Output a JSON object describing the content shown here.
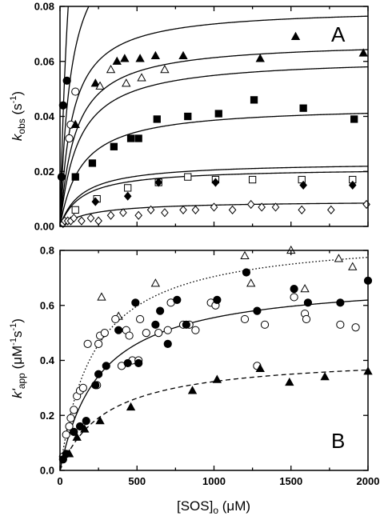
{
  "figure": {
    "xlabel_main": "[SOS]",
    "xlabel_sub": "o",
    "xlabel_unit": " (μM)"
  },
  "chart_data": [
    {
      "type": "scatter",
      "panel_label": "A",
      "ylabel_main": "k",
      "ylabel_sub": "obs",
      "ylabel_unit": " (s",
      "ylabel_sup": "-1",
      "ylabel_close": ")",
      "xlim": [
        0,
        2000
      ],
      "ylim": [
        0,
        0.08
      ],
      "xticks": [],
      "xtick_labels": [],
      "yticks": [
        0,
        0.02,
        0.04,
        0.06,
        0.08
      ],
      "ytick_labels": [
        "0.00",
        "0.02",
        "0.04",
        "0.06",
        "0.08"
      ],
      "grid": false,
      "series": [
        {
          "marker": "filled-circle",
          "points": [
            [
              10,
              0.018
            ],
            [
              20,
              0.044
            ],
            [
              45,
              0.053
            ]
          ]
        },
        {
          "marker": "open-circle",
          "points": [
            [
              60,
              0.032
            ],
            [
              70,
              0.037
            ],
            [
              100,
              0.049
            ]
          ]
        },
        {
          "marker": "filled-triangle",
          "points": [
            [
              100,
              0.037
            ],
            [
              230,
              0.052
            ],
            [
              370,
              0.06
            ],
            [
              420,
              0.061
            ],
            [
              520,
              0.061
            ],
            [
              620,
              0.062
            ],
            [
              800,
              0.062
            ],
            [
              1300,
              0.061
            ],
            [
              1530,
              0.069
            ],
            [
              1970,
              0.063
            ]
          ]
        },
        {
          "marker": "open-triangle",
          "points": [
            [
              260,
              0.051
            ],
            [
              330,
              0.057
            ],
            [
              430,
              0.052
            ],
            [
              530,
              0.054
            ],
            [
              680,
              0.057
            ]
          ]
        },
        {
          "marker": "filled-square",
          "points": [
            [
              100,
              0.018
            ],
            [
              210,
              0.023
            ],
            [
              350,
              0.029
            ],
            [
              460,
              0.032
            ],
            [
              510,
              0.032
            ],
            [
              630,
              0.039
            ],
            [
              830,
              0.04
            ],
            [
              1030,
              0.041
            ],
            [
              1260,
              0.046
            ],
            [
              1580,
              0.043
            ],
            [
              1910,
              0.039
            ]
          ]
        },
        {
          "marker": "open-square",
          "points": [
            [
              100,
              0.006
            ],
            [
              240,
              0.01
            ],
            [
              440,
              0.014
            ],
            [
              640,
              0.016
            ],
            [
              830,
              0.018
            ],
            [
              1010,
              0.017
            ],
            [
              1250,
              0.017
            ],
            [
              1570,
              0.017
            ],
            [
              1900,
              0.017
            ]
          ]
        },
        {
          "marker": "filled-diamond",
          "points": [
            [
              230,
              0.009
            ],
            [
              440,
              0.011
            ],
            [
              640,
              0.016
            ],
            [
              1010,
              0.016
            ],
            [
              1580,
              0.015
            ],
            [
              1900,
              0.015
            ]
          ]
        },
        {
          "marker": "open-diamond",
          "points": [
            [
              20,
              0.001
            ],
            [
              30,
              0.002
            ],
            [
              50,
              0.002
            ],
            [
              70,
              0.002
            ],
            [
              90,
              0.003
            ],
            [
              140,
              0.002
            ],
            [
              200,
              0.003
            ],
            [
              250,
              0.002
            ],
            [
              330,
              0.004
            ],
            [
              410,
              0.005
            ],
            [
              510,
              0.004
            ],
            [
              590,
              0.006
            ],
            [
              680,
              0.005
            ],
            [
              800,
              0.006
            ],
            [
              880,
              0.006
            ],
            [
              1000,
              0.007
            ],
            [
              1120,
              0.006
            ],
            [
              1240,
              0.008
            ],
            [
              1310,
              0.007
            ],
            [
              1400,
              0.007
            ],
            [
              1570,
              0.006
            ],
            [
              1760,
              0.006
            ],
            [
              1990,
              0.008
            ]
          ]
        }
      ],
      "fit_curves": [
        {
          "style": "solid",
          "vmax": 0.2,
          "km": 80
        },
        {
          "style": "solid",
          "vmax": 0.11,
          "km": 70
        },
        {
          "style": "solid",
          "vmax": 0.0795,
          "km": 80
        },
        {
          "style": "solid",
          "vmax": 0.0675,
          "km": 100
        },
        {
          "style": "solid",
          "vmax": 0.0615,
          "km": 120
        },
        {
          "style": "solid",
          "vmax": 0.044,
          "km": 140
        },
        {
          "style": "solid",
          "vmax": 0.0234,
          "km": 140
        },
        {
          "style": "solid",
          "vmax": 0.0213,
          "km": 140
        },
        {
          "style": "solid",
          "vmax": 0.0093,
          "km": 200
        }
      ]
    },
    {
      "type": "scatter",
      "panel_label": "B",
      "ylabel_main": "k'",
      "ylabel_sub": "app",
      "ylabel_unit": " (μM",
      "ylabel_sup": "-1",
      "ylabel_close": "s",
      "ylabel_sup2": "-1",
      "ylabel_close2": ")",
      "xlim": [
        0,
        2000
      ],
      "ylim": [
        0,
        0.8
      ],
      "xticks": [
        0,
        500,
        1000,
        1500,
        2000
      ],
      "xtick_labels": [
        "0",
        "500",
        "1000",
        "1500",
        "2000"
      ],
      "yticks": [
        0,
        0.2,
        0.4,
        0.6,
        0.8
      ],
      "ytick_labels": [
        "0.0",
        "0.2",
        "0.4",
        "0.6",
        "0.8"
      ],
      "grid": false,
      "series": [
        {
          "marker": "open-triangle",
          "points": [
            [
              270,
              0.63
            ],
            [
              380,
              0.56
            ],
            [
              620,
              0.68
            ],
            [
              1200,
              0.78
            ],
            [
              1240,
              0.68
            ],
            [
              1500,
              0.8
            ],
            [
              1590,
              0.66
            ],
            [
              1810,
              0.77
            ],
            [
              1900,
              0.74
            ]
          ]
        },
        {
          "marker": "open-circle",
          "points": [
            [
              20,
              0.05
            ],
            [
              40,
              0.13
            ],
            [
              60,
              0.16
            ],
            [
              70,
              0.19
            ],
            [
              90,
              0.22
            ],
            [
              110,
              0.27
            ],
            [
              130,
              0.29
            ],
            [
              150,
              0.3
            ],
            [
              180,
              0.46
            ],
            [
              240,
              0.31
            ],
            [
              250,
              0.46
            ],
            [
              260,
              0.49
            ],
            [
              290,
              0.5
            ],
            [
              360,
              0.55
            ],
            [
              400,
              0.38
            ],
            [
              430,
              0.51
            ],
            [
              450,
              0.49
            ],
            [
              470,
              0.4
            ],
            [
              510,
              0.4
            ],
            [
              520,
              0.55
            ],
            [
              560,
              0.5
            ],
            [
              640,
              0.5
            ],
            [
              700,
              0.51
            ],
            [
              720,
              0.61
            ],
            [
              800,
              0.53
            ],
            [
              840,
              0.53
            ],
            [
              880,
              0.51
            ],
            [
              980,
              0.61
            ],
            [
              1010,
              0.6
            ],
            [
              1200,
              0.55
            ],
            [
              1280,
              0.38
            ],
            [
              1330,
              0.53
            ],
            [
              1520,
              0.63
            ],
            [
              1590,
              0.57
            ],
            [
              1600,
              0.55
            ],
            [
              1820,
              0.53
            ],
            [
              1920,
              0.52
            ]
          ]
        },
        {
          "marker": "filled-circle",
          "points": [
            [
              20,
              0.04
            ],
            [
              40,
              0.06
            ],
            [
              90,
              0.14
            ],
            [
              130,
              0.16
            ],
            [
              170,
              0.18
            ],
            [
              230,
              0.31
            ],
            [
              250,
              0.35
            ],
            [
              300,
              0.38
            ],
            [
              380,
              0.51
            ],
            [
              440,
              0.39
            ],
            [
              490,
              0.61
            ],
            [
              510,
              0.39
            ],
            [
              620,
              0.53
            ],
            [
              650,
              0.58
            ],
            [
              700,
              0.46
            ],
            [
              760,
              0.62
            ],
            [
              820,
              0.53
            ],
            [
              1020,
              0.62
            ],
            [
              1210,
              0.72
            ],
            [
              1280,
              0.58
            ],
            [
              1520,
              0.66
            ],
            [
              1610,
              0.61
            ],
            [
              1820,
              0.61
            ],
            [
              2000,
              0.69
            ]
          ]
        },
        {
          "marker": "filled-triangle",
          "points": [
            [
              60,
              0.06
            ],
            [
              110,
              0.12
            ],
            [
              160,
              0.15
            ],
            [
              260,
              0.18
            ],
            [
              460,
              0.23
            ],
            [
              860,
              0.29
            ],
            [
              1020,
              0.33
            ],
            [
              1300,
              0.37
            ],
            [
              1490,
              0.32
            ],
            [
              1720,
              0.34
            ],
            [
              2000,
              0.36
            ]
          ]
        }
      ],
      "fit_curves": [
        {
          "style": "dotted",
          "vmax": 0.86,
          "km": 220
        },
        {
          "style": "solid",
          "vmax": 0.7,
          "km": 260
        },
        {
          "style": "dashed",
          "vmax": 0.42,
          "km": 300
        }
      ]
    }
  ]
}
